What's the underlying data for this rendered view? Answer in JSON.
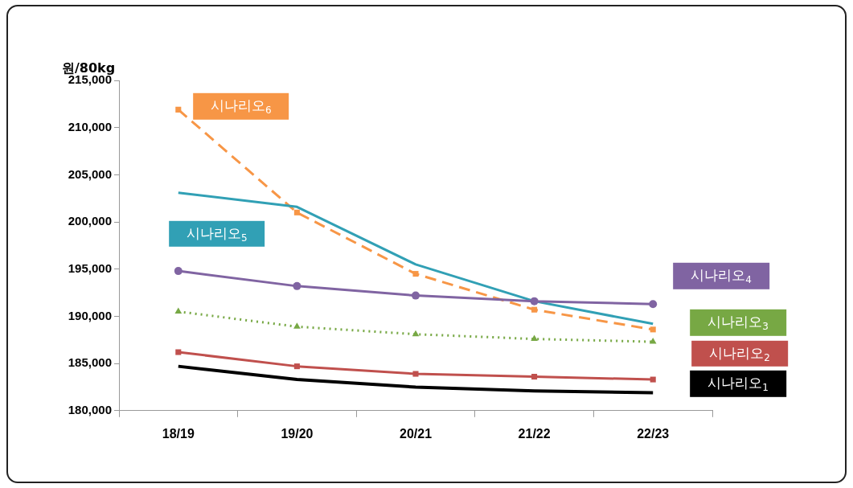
{
  "chart_data": {
    "type": "line",
    "ylabel": "원/80kg",
    "categories": [
      "18/19",
      "19/20",
      "20/21",
      "21/22",
      "22/23"
    ],
    "ylim": [
      180000,
      215000
    ],
    "yticks": [
      {
        "value": 180000,
        "label": "180,000"
      },
      {
        "value": 185000,
        "label": "185,000"
      },
      {
        "value": 190000,
        "label": "190,000"
      },
      {
        "value": 195000,
        "label": "195,000"
      },
      {
        "value": 200000,
        "label": "200,000"
      },
      {
        "value": 205000,
        "label": "205,000"
      },
      {
        "value": 210000,
        "label": "210,000"
      },
      {
        "value": 215000,
        "label": "215,000"
      }
    ],
    "grid": false,
    "legend": false,
    "series": [
      {
        "name": "시나리오$_{1}$",
        "color": "#000000",
        "marker": "none",
        "line_style": "solid",
        "values": [
          184700,
          183300,
          182500,
          182100,
          181900
        ]
      },
      {
        "name": "시나리오$_{2}$",
        "color": "#c0504d",
        "marker": "square",
        "line_style": "solid",
        "values": [
          186200,
          184700,
          183900,
          183600,
          183300
        ]
      },
      {
        "name": "시나리오$_{3}$",
        "color": "#77a844",
        "marker": "triangle",
        "line_style": "dotted",
        "values": [
          190500,
          188900,
          188100,
          187600,
          187300
        ]
      },
      {
        "name": "시나리오$_{4}$",
        "color": "#8064a2",
        "marker": "circle",
        "line_style": "solid",
        "values": [
          194800,
          193200,
          192200,
          191600,
          191300
        ]
      },
      {
        "name": "시나리오$_{5}$",
        "color": "#31a0b5",
        "marker": "none",
        "line_style": "solid",
        "values": [
          203100,
          201600,
          195500,
          191600,
          189200
        ]
      },
      {
        "name": "시나리오$_{6}$",
        "color": "#f79646",
        "marker": "square",
        "line_style": "dashed",
        "values": [
          211900,
          201000,
          194500,
          190700,
          188600
        ]
      }
    ]
  }
}
